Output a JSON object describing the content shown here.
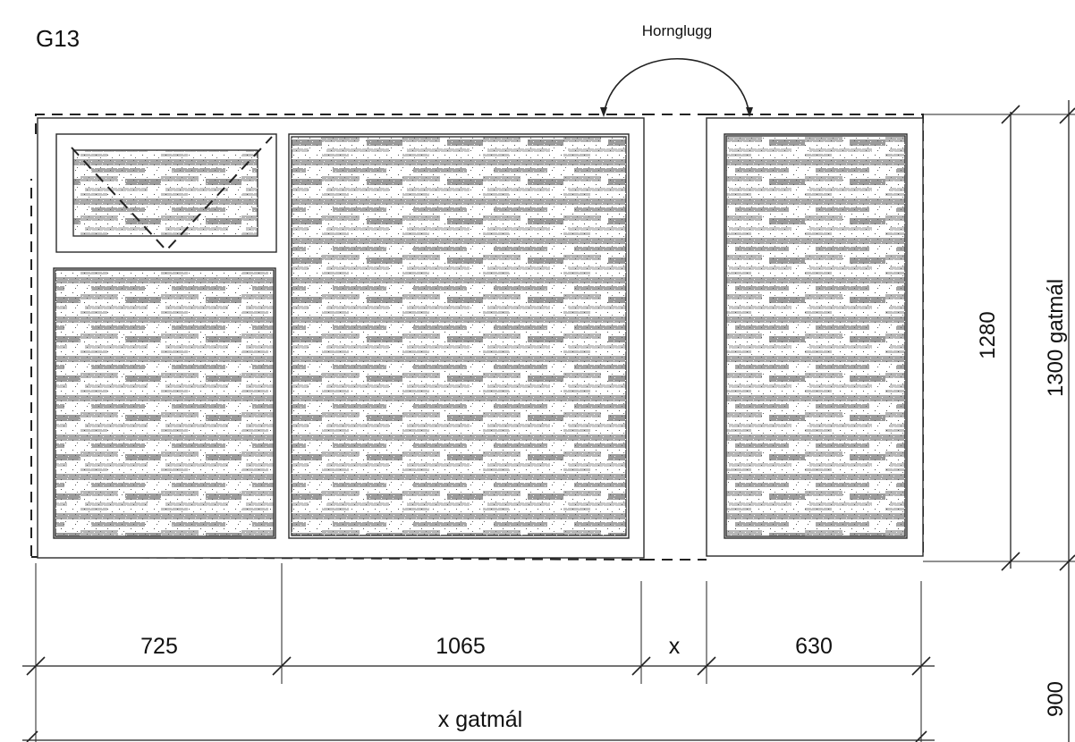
{
  "drawing": {
    "id_label": "G13",
    "corner_window_label": "Hornglugg"
  },
  "dimensions": {
    "horizontal": [
      "725",
      "1065",
      "x",
      "630"
    ],
    "total_width": "x gatmál",
    "inner_height": "1280",
    "total_height": "1300 gatmál",
    "sill_height": "900"
  },
  "colors": {
    "line": "#222222",
    "glass_dark": "#8f8f8f",
    "glass_light": "#ffffff"
  }
}
